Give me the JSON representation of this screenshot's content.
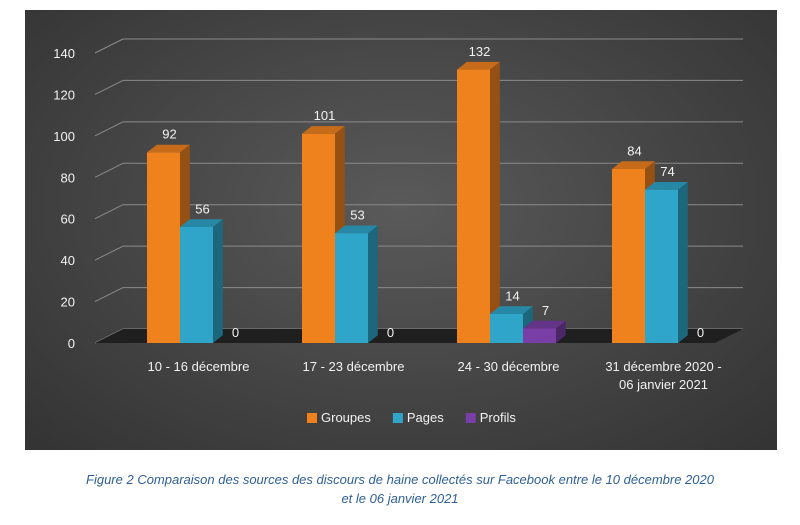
{
  "chart_data": {
    "type": "bar",
    "title": "",
    "xlabel": "",
    "ylabel": "",
    "ylim": [
      0,
      140
    ],
    "yticks": [
      0,
      20,
      40,
      60,
      80,
      100,
      120,
      140
    ],
    "grid": true,
    "legend_position": "bottom",
    "categories": [
      [
        "10 - 16 décembre"
      ],
      [
        "17 - 23 décembre"
      ],
      [
        "24 - 30 décembre"
      ],
      [
        "31 décembre 2020 -",
        "06 janvier 2021"
      ]
    ],
    "series": [
      {
        "name": "Groupes",
        "values": [
          92,
          101,
          132,
          84
        ],
        "color": "#f0821e"
      },
      {
        "name": "Pages",
        "values": [
          56,
          53,
          14,
          74
        ],
        "color": "#2fa6c9"
      },
      {
        "name": "Profils",
        "values": [
          0,
          0,
          7,
          0
        ],
        "color": "#7a3fa6"
      }
    ]
  },
  "caption": {
    "line1": "Figure 2 Comparaison des sources des discours de haine collectés sur Facebook entre le 10 décembre 2020",
    "line2": "et le 06 janvier 2021"
  }
}
